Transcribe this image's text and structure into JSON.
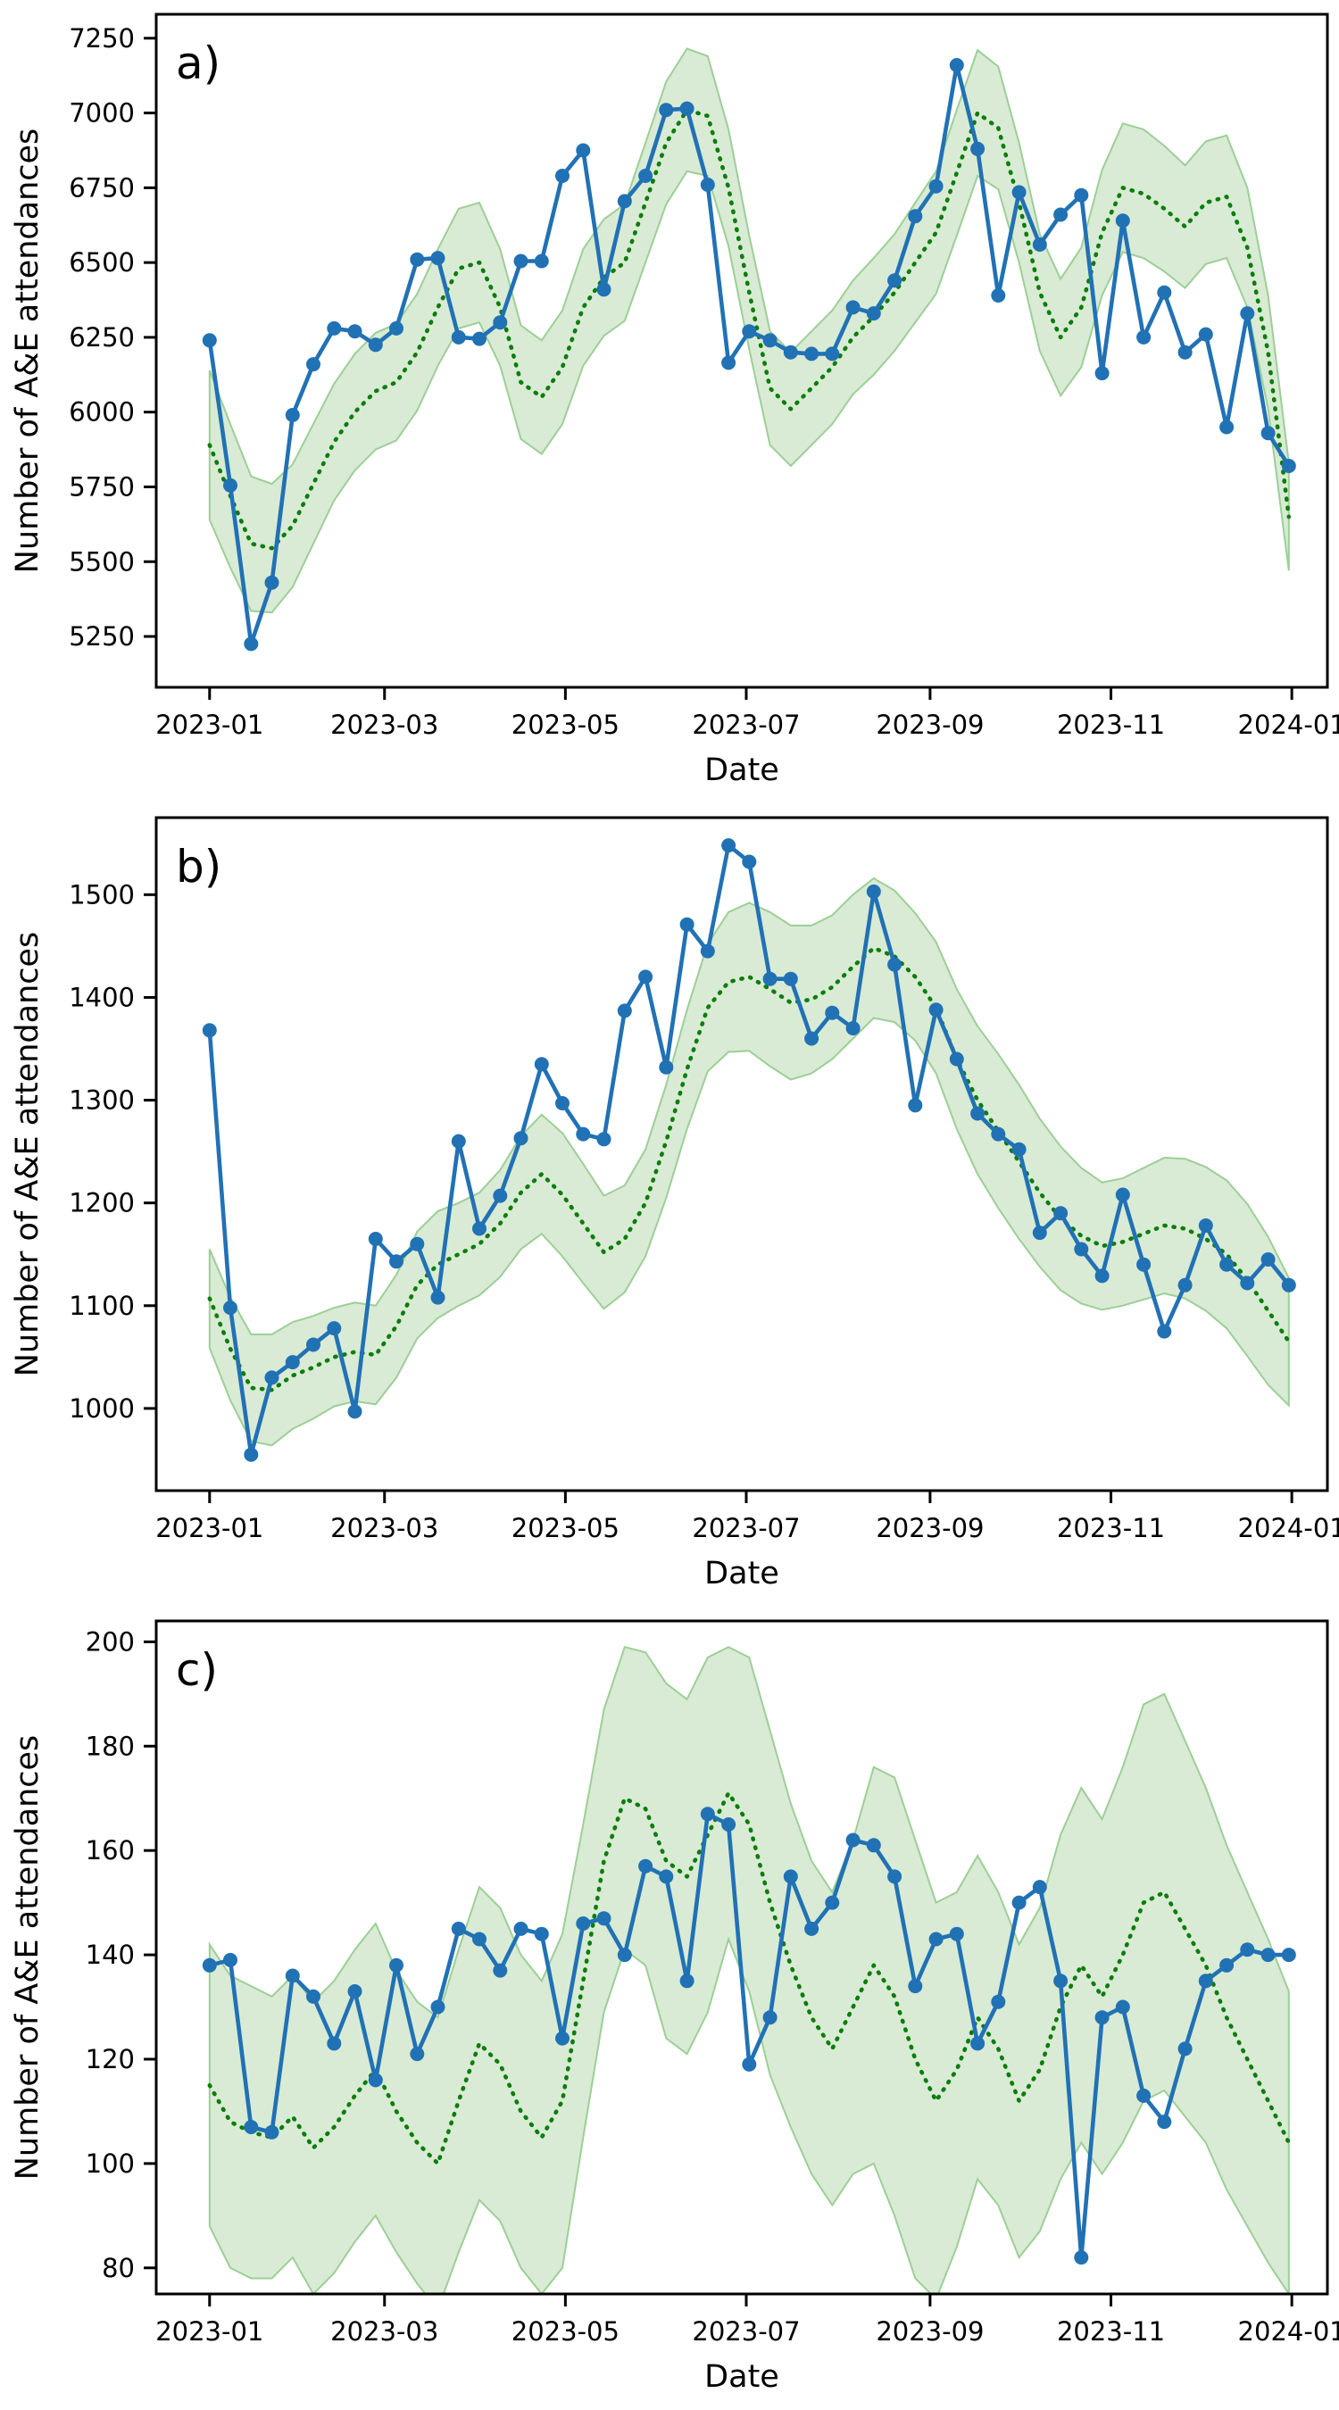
{
  "figure": {
    "title": "",
    "x_axis_label": "Date",
    "y_axis_label": "Number of A&E attendances",
    "start_date": "2023-01-01",
    "interval_days": 7,
    "x_tick_labels": [
      "2023-01",
      "2023-03",
      "2023-05",
      "2023-07",
      "2023-09",
      "2023-11",
      "2024-01"
    ],
    "x_tick_days": [
      0,
      59,
      120,
      181,
      243,
      304,
      365
    ],
    "x_domain_days": [
      -18,
      377
    ],
    "colors": {
      "observed_line": "#2171b5",
      "dotted_line": "#0a7d0a",
      "band_fill": "#d9ebd4",
      "band_edge": "#9ccf96",
      "axis": "#000000"
    }
  },
  "chart_data": [
    {
      "type": "line",
      "panel_label": "a)",
      "ylabel": "Number of A&E attendances",
      "xlabel": "Date",
      "ylim": [
        5080,
        7330
      ],
      "yticks": [
        5250,
        5500,
        5750,
        6000,
        6250,
        6500,
        6750,
        7000,
        7250
      ],
      "grid": false,
      "legend": null,
      "solid_line_values": [
        6240,
        5755,
        5225,
        5430,
        5990,
        6160,
        6280,
        6270,
        6225,
        6280,
        6510,
        6515,
        6250,
        6245,
        6300,
        6505,
        6505,
        6790,
        6875,
        6410,
        6705,
        6790,
        7010,
        7015,
        6760,
        6165,
        6270,
        6240,
        6200,
        6195,
        6195,
        6350,
        6330,
        6440,
        6655,
        6755,
        7160,
        6880,
        6390,
        6735,
        6560,
        6660,
        6725,
        6130,
        6640,
        6250,
        6400,
        6200,
        6260,
        5950,
        6330,
        5930,
        5820
      ],
      "dotted_line_values": [
        5890,
        5720,
        5560,
        5545,
        5620,
        5760,
        5900,
        6000,
        6070,
        6100,
        6200,
        6350,
        6480,
        6500,
        6350,
        6100,
        6050,
        6150,
        6350,
        6450,
        6500,
        6700,
        6900,
        7010,
        6990,
        6750,
        6400,
        6080,
        6010,
        6080,
        6150,
        6250,
        6320,
        6400,
        6500,
        6600,
        6800,
        7000,
        6950,
        6700,
        6400,
        6250,
        6350,
        6600,
        6750,
        6730,
        6680,
        6620,
        6700,
        6720,
        6550,
        6200,
        5650
      ],
      "band_halfwidth": [
        250,
        240,
        225,
        215,
        205,
        200,
        195,
        195,
        195,
        195,
        195,
        195,
        200,
        200,
        195,
        190,
        190,
        190,
        195,
        195,
        195,
        200,
        205,
        205,
        200,
        195,
        190,
        190,
        190,
        190,
        190,
        190,
        195,
        195,
        200,
        205,
        210,
        210,
        205,
        200,
        195,
        195,
        200,
        210,
        215,
        215,
        210,
        205,
        205,
        205,
        200,
        190,
        180
      ]
    },
    {
      "type": "line",
      "panel_label": "b)",
      "ylabel": "Number of A&E attendances",
      "xlabel": "Date",
      "ylim": [
        920,
        1575
      ],
      "yticks": [
        1000,
        1100,
        1200,
        1300,
        1400,
        1500
      ],
      "grid": false,
      "legend": null,
      "solid_line_values": [
        1368,
        1098,
        955,
        1030,
        1045,
        1062,
        1078,
        997,
        1165,
        1143,
        1160,
        1108,
        1260,
        1175,
        1207,
        1263,
        1335,
        1297,
        1267,
        1262,
        1387,
        1420,
        1332,
        1471,
        1445,
        1548,
        1532,
        1418,
        1418,
        1360,
        1385,
        1370,
        1503,
        1432,
        1295,
        1388,
        1340,
        1287,
        1267,
        1252,
        1171,
        1190,
        1155,
        1129,
        1208,
        1140,
        1075,
        1120,
        1178,
        1140,
        1122,
        1145,
        1120
      ],
      "dotted_line_values": [
        1107,
        1058,
        1020,
        1018,
        1032,
        1040,
        1050,
        1055,
        1052,
        1080,
        1120,
        1140,
        1150,
        1160,
        1180,
        1210,
        1228,
        1208,
        1180,
        1152,
        1165,
        1200,
        1260,
        1330,
        1390,
        1415,
        1420,
        1408,
        1395,
        1398,
        1410,
        1430,
        1448,
        1440,
        1420,
        1390,
        1340,
        1300,
        1270,
        1240,
        1210,
        1185,
        1168,
        1158,
        1162,
        1170,
        1178,
        1175,
        1165,
        1150,
        1125,
        1095,
        1065
      ],
      "band_halfwidth": [
        48,
        50,
        52,
        54,
        52,
        50,
        48,
        48,
        48,
        50,
        52,
        52,
        50,
        50,
        52,
        55,
        58,
        60,
        58,
        55,
        52,
        52,
        55,
        58,
        62,
        68,
        72,
        75,
        75,
        72,
        70,
        70,
        68,
        64,
        62,
        64,
        68,
        72,
        75,
        75,
        72,
        70,
        66,
        62,
        62,
        64,
        66,
        68,
        70,
        72,
        74,
        72,
        62
      ]
    },
    {
      "type": "line",
      "panel_label": "c)",
      "ylabel": "Number of A&E attendances",
      "xlabel": "Date",
      "ylim": [
        75,
        204
      ],
      "yticks": [
        80,
        100,
        120,
        140,
        160,
        180,
        200
      ],
      "grid": false,
      "legend": null,
      "solid_line_values": [
        138,
        139,
        107,
        106,
        136,
        132,
        123,
        133,
        116,
        138,
        121,
        130,
        145,
        143,
        137,
        145,
        144,
        124,
        146,
        147,
        140,
        157,
        155,
        135,
        167,
        165,
        119,
        128,
        155,
        145,
        150,
        162,
        161,
        155,
        134,
        143,
        144,
        123,
        131,
        150,
        153,
        135,
        82,
        128,
        130,
        113,
        108,
        122,
        135,
        138,
        141,
        140,
        140
      ],
      "dotted_line_values": [
        115,
        108,
        106,
        105,
        109,
        103,
        107,
        113,
        118,
        110,
        104,
        100,
        112,
        123,
        119,
        110,
        105,
        112,
        135,
        158,
        170,
        168,
        158,
        155,
        163,
        171,
        165,
        150,
        138,
        128,
        122,
        130,
        138,
        132,
        120,
        112,
        118,
        128,
        122,
        112,
        118,
        130,
        138,
        132,
        140,
        150,
        152,
        145,
        138,
        128,
        120,
        112,
        104
      ],
      "band_halfwidth": [
        27,
        28,
        28,
        27,
        27,
        28,
        28,
        28,
        28,
        27,
        27,
        28,
        29,
        30,
        30,
        30,
        30,
        32,
        30,
        29,
        29,
        30,
        34,
        34,
        34,
        28,
        32,
        33,
        31,
        30,
        30,
        32,
        38,
        42,
        42,
        38,
        34,
        31,
        30,
        30,
        31,
        33,
        34,
        34,
        36,
        38,
        38,
        36,
        34,
        33,
        32,
        31,
        29
      ]
    }
  ]
}
